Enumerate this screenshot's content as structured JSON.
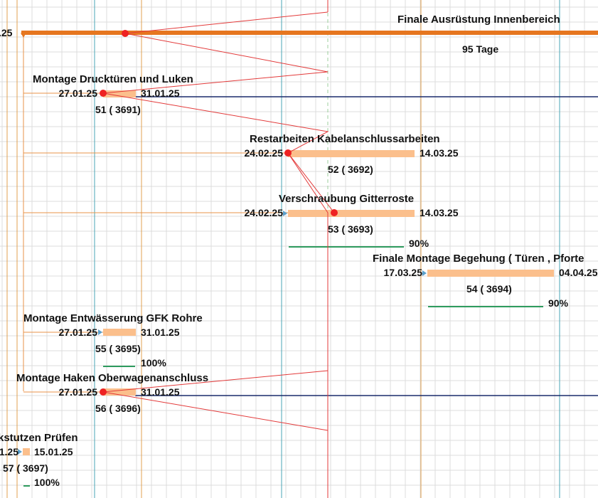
{
  "colors": {
    "grid": "#dcdcdc",
    "summary_bar": "#e6761f",
    "task_bar": "#fbbf8c",
    "progress_line": "#2e9b5e",
    "dependency_line": "#e33a3a",
    "milestone": "#ee2222",
    "baseline": "#1a2b6b",
    "vline_orange": "#e0a050",
    "vline_teal": "#4aa5b5",
    "dashed_line": "#9ccf9c",
    "arrow": "#5aa0cc"
  },
  "summary": {
    "name": "Finale Ausrüstung Innenbereich",
    "start_partial": ".25",
    "duration": "95 Tage"
  },
  "tasks": [
    {
      "id": "t51",
      "name": "Montage Drucktüren und Luken",
      "start": "27.01.25",
      "end": "31.01.25",
      "number": "51 ( 3691)"
    },
    {
      "id": "t52",
      "name": "Restarbeiten Kabelanschlussarbeiten",
      "start": "24.02.25",
      "end": "14.03.25",
      "number": "52 ( 3692)"
    },
    {
      "id": "t53",
      "name": "Verschraubung Gitterroste",
      "start": "24.02.25",
      "end": "14.03.25",
      "number": "53 ( 3693)",
      "progress": "90%"
    },
    {
      "id": "t54",
      "name": "Finale Montage Begehung ( Türen , Pforte",
      "start": "17.03.25",
      "end": "04.04.25",
      "number": "54 ( 3694)",
      "progress": "90%"
    },
    {
      "id": "t55",
      "name": "Montage Entwässerung GFK Rohre",
      "start": "27.01.25",
      "end": "31.01.25",
      "number": "55 ( 3695)",
      "progress": "100%"
    },
    {
      "id": "t56",
      "name": "Montage Haken Oberwagenanschluss",
      "start": "27.01.25",
      "end": "31.01.25",
      "number": "56 ( 3696)"
    },
    {
      "id": "t57",
      "name": "kstutzen Prüfen",
      "start": "1.25",
      "end": "15.01.25",
      "number": "57 ( 3697)",
      "progress": "100%"
    }
  ]
}
